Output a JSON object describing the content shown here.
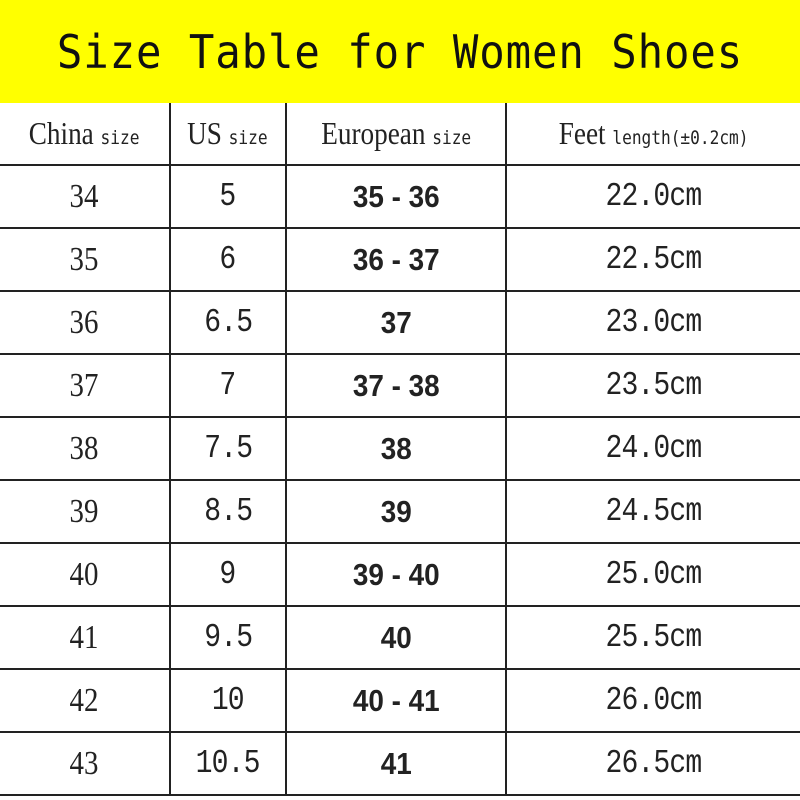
{
  "title": "Size Table for Women Shoes",
  "colors": {
    "title_background": "#ffff00",
    "border": "#222222"
  },
  "headers": [
    {
      "main": "China",
      "sub": "size"
    },
    {
      "main": "US",
      "sub": "size"
    },
    {
      "main": "European",
      "sub": "size"
    },
    {
      "main": "Feet",
      "sub": "length(±0.2cm)"
    }
  ],
  "rows": [
    {
      "china": "34",
      "us": "5",
      "eu": "35 - 36",
      "feet": "22.0cm"
    },
    {
      "china": "35",
      "us": "6",
      "eu": "36 - 37",
      "feet": "22.5cm"
    },
    {
      "china": "36",
      "us": "6.5",
      "eu": "37",
      "feet": "23.0cm"
    },
    {
      "china": "37",
      "us": "7",
      "eu": "37 - 38",
      "feet": "23.5cm"
    },
    {
      "china": "38",
      "us": "7.5",
      "eu": "38",
      "feet": "24.0cm"
    },
    {
      "china": "39",
      "us": "8.5",
      "eu": "39",
      "feet": "24.5cm"
    },
    {
      "china": "40",
      "us": "9",
      "eu": "39 - 40",
      "feet": "25.0cm"
    },
    {
      "china": "41",
      "us": "9.5",
      "eu": "40",
      "feet": "25.5cm"
    },
    {
      "china": "42",
      "us": "10",
      "eu": "40 - 41",
      "feet": "26.0cm"
    },
    {
      "china": "43",
      "us": "10.5",
      "eu": "41",
      "feet": "26.5cm"
    }
  ]
}
